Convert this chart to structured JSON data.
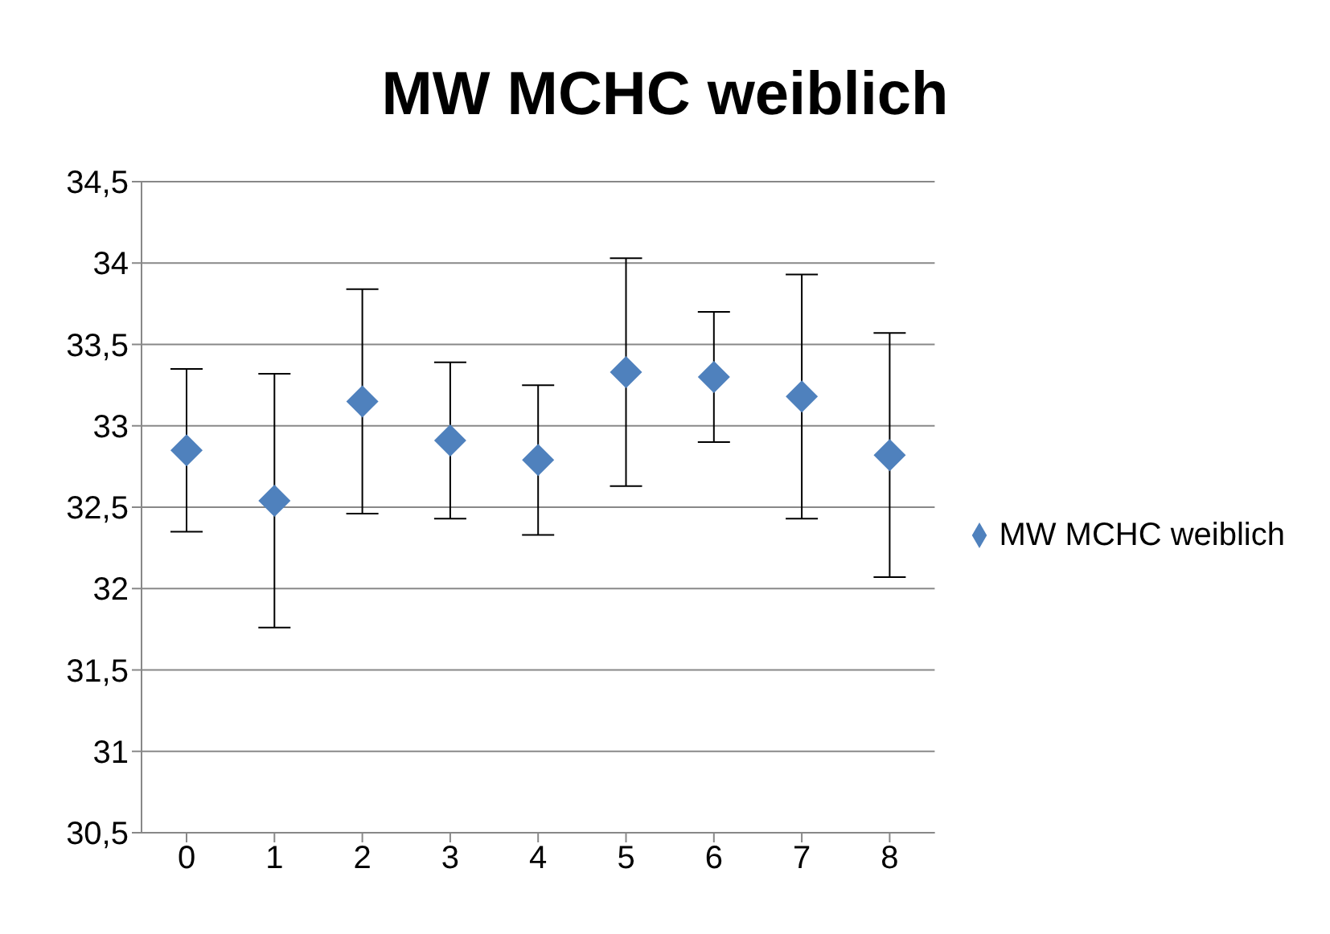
{
  "chart_data": {
    "type": "scatter",
    "title": "MW MCHC weiblich",
    "categories": [
      "0",
      "1",
      "2",
      "3",
      "4",
      "5",
      "6",
      "7",
      "8"
    ],
    "series": [
      {
        "name": "MW MCHC weiblich",
        "color": "#4f81bd",
        "values": [
          32.85,
          32.54,
          33.15,
          32.91,
          32.79,
          33.33,
          33.3,
          33.18,
          32.82
        ],
        "errors": [
          0.5,
          0.78,
          0.69,
          0.48,
          0.46,
          0.7,
          0.4,
          0.75,
          0.75
        ]
      }
    ],
    "ylim": [
      30.5,
      34.5
    ],
    "yticks": [
      {
        "value": 30.5,
        "label": "30,5"
      },
      31,
      {
        "value": 31.5,
        "label": "31,5"
      },
      32,
      {
        "value": 32.5,
        "label": "32,5"
      },
      33,
      {
        "value": 33.5,
        "label": "33,5"
      },
      34,
      {
        "value": 34.5,
        "label": "34,5"
      }
    ],
    "grid": "y",
    "legend": "right",
    "marker": "diamond"
  }
}
